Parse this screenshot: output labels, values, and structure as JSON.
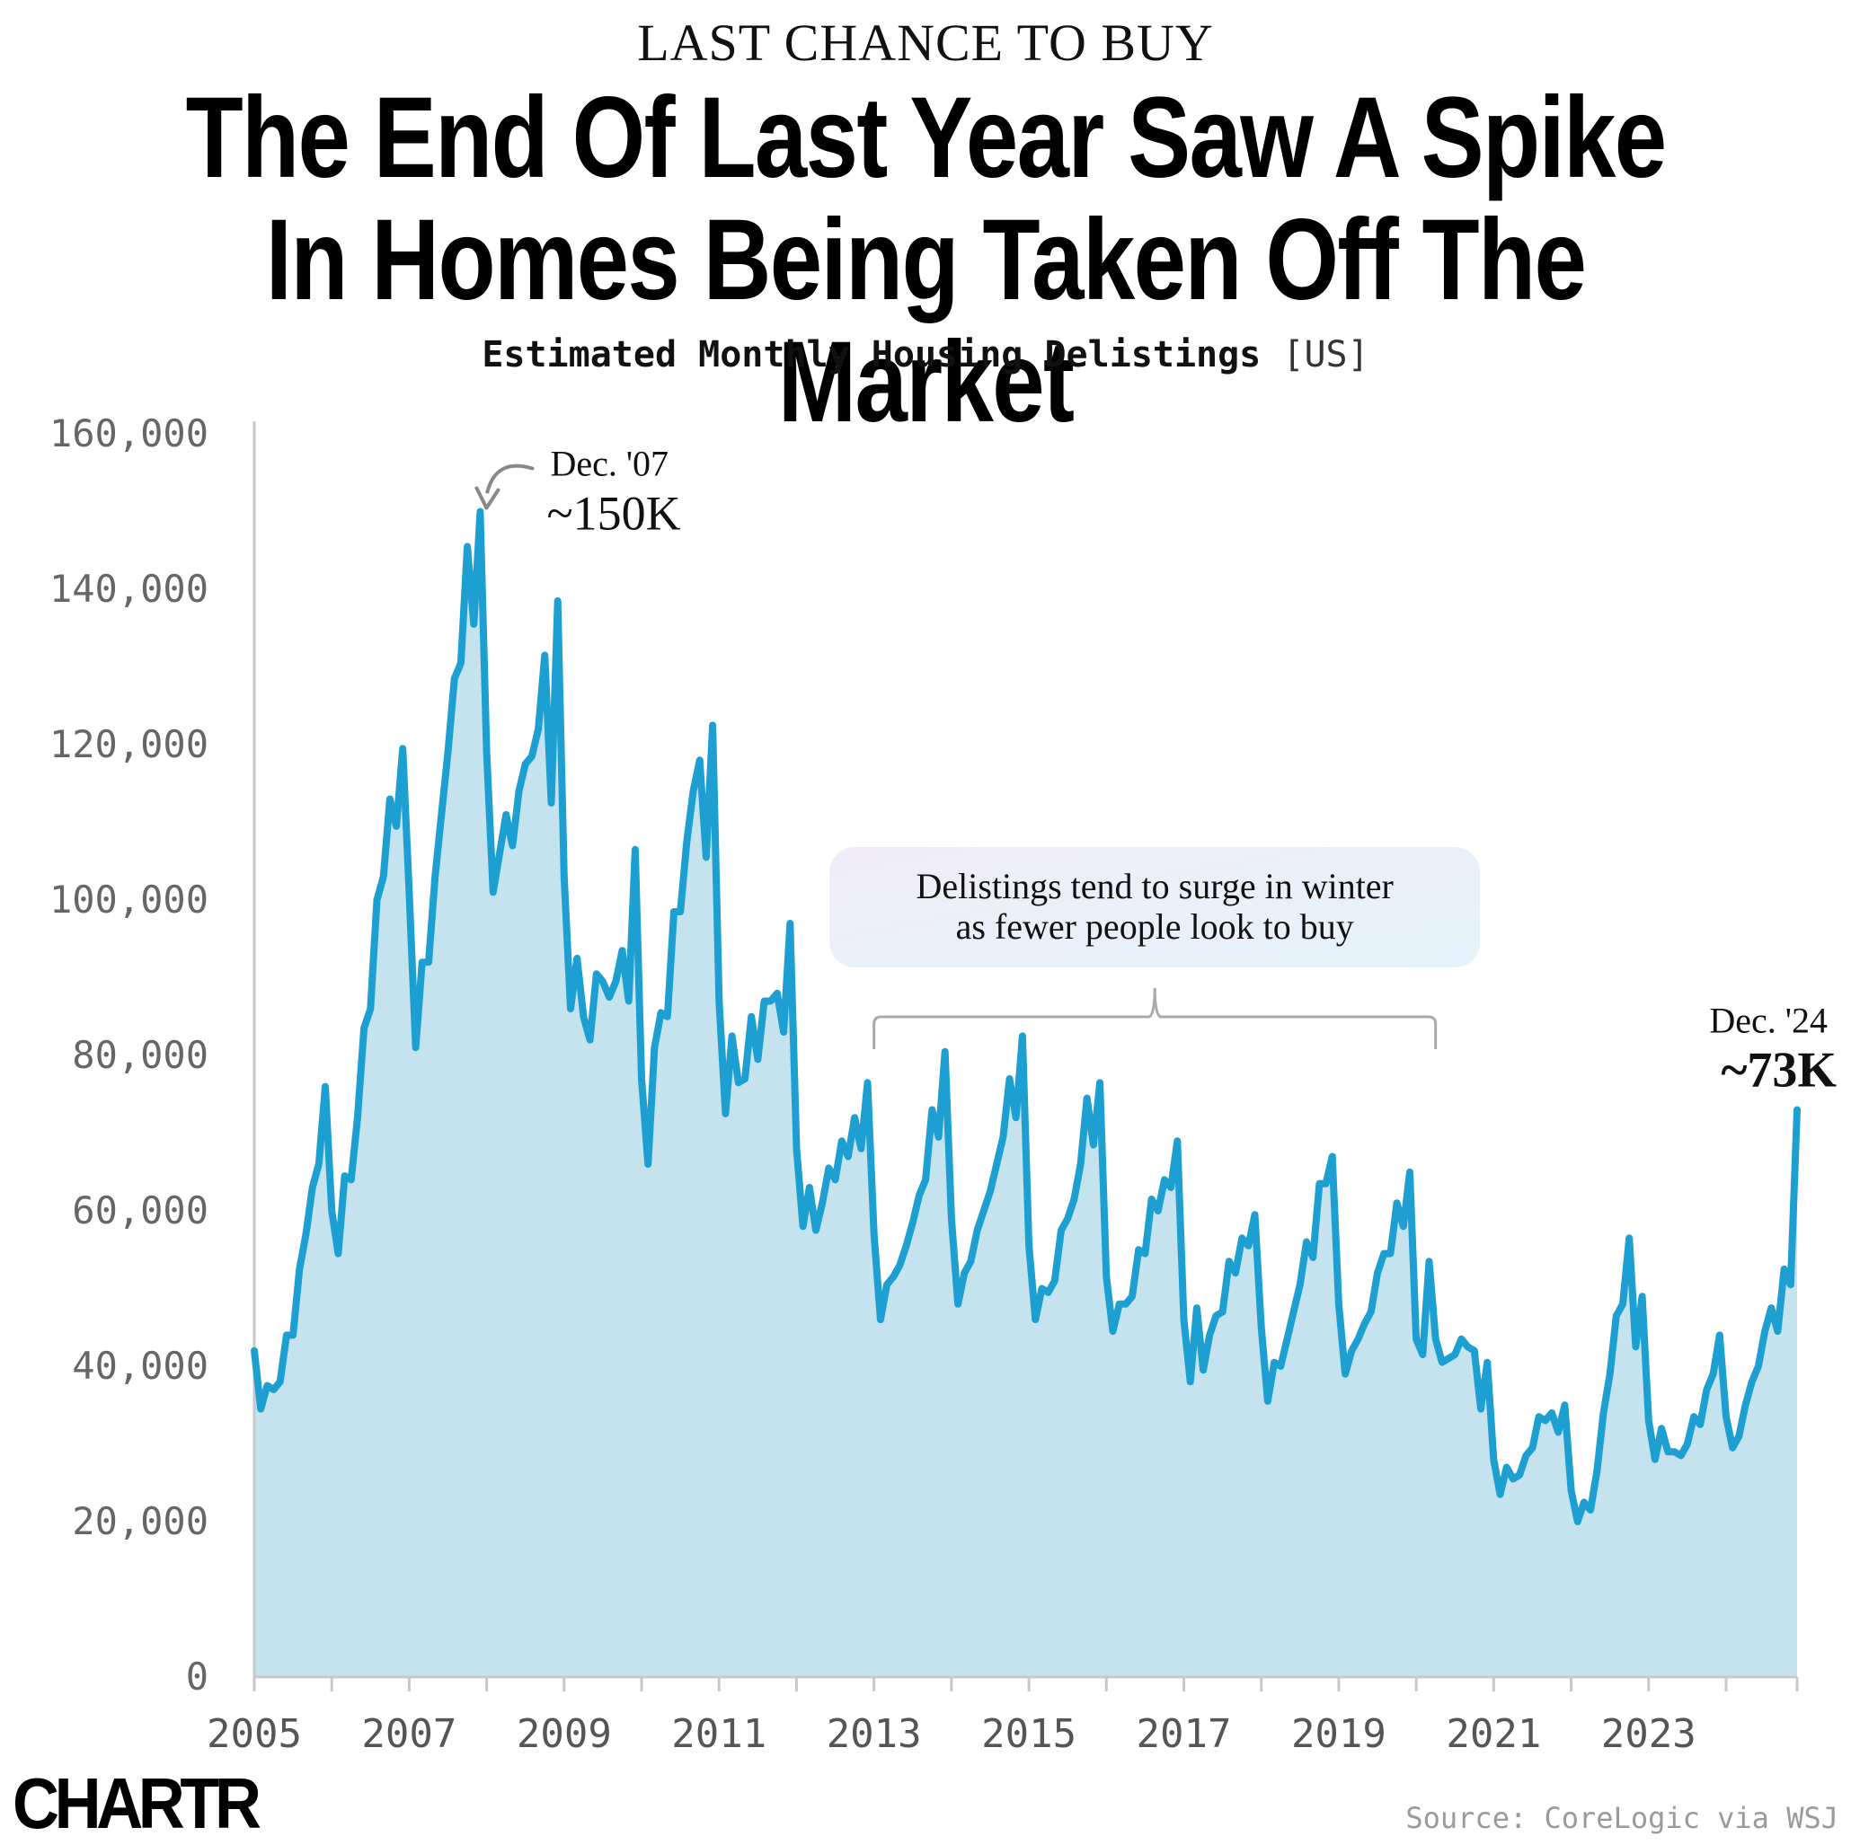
{
  "header": {
    "kicker": "LAST CHANCE TO BUY",
    "title": "The End Of Last Year Saw A Spike In Homes Being Taken Off The Market",
    "subtitle": "Estimated Monthly Housing Delistings",
    "subtitle_unit": "[US]"
  },
  "footer": {
    "logo": "CHARTR",
    "source": "Source: CoreLogic via WSJ"
  },
  "chart_data": {
    "type": "area",
    "title": "The End Of Last Year Saw A Spike In Homes Being Taken Off The Market",
    "subtitle": "Estimated Monthly Housing Delistings [US]",
    "xlabel": "",
    "ylabel": "",
    "x_range": [
      "2005-01",
      "2024-12"
    ],
    "ylim": [
      0,
      160000
    ],
    "y_ticks": [
      0,
      20000,
      40000,
      60000,
      80000,
      100000,
      120000,
      140000,
      160000
    ],
    "y_tick_labels": [
      "0",
      "20,000",
      "40,000",
      "60,000",
      "80,000",
      "100,000",
      "120,000",
      "140,000",
      "160,000"
    ],
    "x_tick_labels": [
      "2005",
      "2007",
      "2009",
      "2011",
      "2013",
      "2015",
      "2017",
      "2019",
      "2021",
      "2023"
    ],
    "grid": false,
    "line_color": "#1e9fd2",
    "fill_color": "#c4e3ef",
    "series": [
      {
        "x": [
          "2005-01",
          "2005-02",
          "2005-03",
          "2005-04",
          "2005-05",
          "2005-06",
          "2005-07",
          "2005-08",
          "2005-09",
          "2005-10",
          "2005-11",
          "2005-12",
          "2006-01",
          "2006-02",
          "2006-03",
          "2006-04",
          "2006-05",
          "2006-06",
          "2006-07",
          "2006-08",
          "2006-09",
          "2006-10",
          "2006-11",
          "2006-12",
          "2007-01",
          "2007-02",
          "2007-03",
          "2007-04",
          "2007-05",
          "2007-06",
          "2007-07",
          "2007-08",
          "2007-09",
          "2007-10",
          "2007-11",
          "2007-12",
          "2008-01",
          "2008-02",
          "2008-03",
          "2008-04",
          "2008-05",
          "2008-06",
          "2008-07",
          "2008-08",
          "2008-09",
          "2008-10",
          "2008-11",
          "2008-12",
          "2009-01",
          "2009-02",
          "2009-03",
          "2009-04",
          "2009-05",
          "2009-06",
          "2009-07",
          "2009-08",
          "2009-09",
          "2009-10",
          "2009-11",
          "2009-12",
          "2010-01",
          "2010-02",
          "2010-03",
          "2010-04",
          "2010-05",
          "2010-06",
          "2010-07",
          "2010-08",
          "2010-09",
          "2010-10",
          "2010-11",
          "2010-12",
          "2011-01",
          "2011-02",
          "2011-03",
          "2011-04",
          "2011-05",
          "2011-06",
          "2011-07",
          "2011-08",
          "2011-09",
          "2011-10",
          "2011-11",
          "2011-12",
          "2012-01",
          "2012-02",
          "2012-03",
          "2012-04",
          "2012-05",
          "2012-06",
          "2012-07",
          "2012-08",
          "2012-09",
          "2012-10",
          "2012-11",
          "2012-12",
          "2013-01",
          "2013-02",
          "2013-03",
          "2013-04",
          "2013-05",
          "2013-06",
          "2013-07",
          "2013-08",
          "2013-09",
          "2013-10",
          "2013-11",
          "2013-12",
          "2014-01",
          "2014-02",
          "2014-03",
          "2014-04",
          "2014-05",
          "2014-06",
          "2014-07",
          "2014-08",
          "2014-09",
          "2014-10",
          "2014-11",
          "2014-12",
          "2015-01",
          "2015-02",
          "2015-03",
          "2015-04",
          "2015-05",
          "2015-06",
          "2015-07",
          "2015-08",
          "2015-09",
          "2015-10",
          "2015-11",
          "2015-12",
          "2016-01",
          "2016-02",
          "2016-03",
          "2016-04",
          "2016-05",
          "2016-06",
          "2016-07",
          "2016-08",
          "2016-09",
          "2016-10",
          "2016-11",
          "2016-12",
          "2017-01",
          "2017-02",
          "2017-03",
          "2017-04",
          "2017-05",
          "2017-06",
          "2017-07",
          "2017-08",
          "2017-09",
          "2017-10",
          "2017-11",
          "2017-12",
          "2018-01",
          "2018-02",
          "2018-03",
          "2018-04",
          "2018-05",
          "2018-06",
          "2018-07",
          "2018-08",
          "2018-09",
          "2018-10",
          "2018-11",
          "2018-12",
          "2019-01",
          "2019-02",
          "2019-03",
          "2019-04",
          "2019-05",
          "2019-06",
          "2019-07",
          "2019-08",
          "2019-09",
          "2019-10",
          "2019-11",
          "2019-12",
          "2020-01",
          "2020-02",
          "2020-03",
          "2020-04",
          "2020-05",
          "2020-06",
          "2020-07",
          "2020-08",
          "2020-09",
          "2020-10",
          "2020-11",
          "2020-12",
          "2021-01",
          "2021-02",
          "2021-03",
          "2021-04",
          "2021-05",
          "2021-06",
          "2021-07",
          "2021-08",
          "2021-09",
          "2021-10",
          "2021-11",
          "2021-12",
          "2022-01",
          "2022-02",
          "2022-03",
          "2022-04",
          "2022-05",
          "2022-06",
          "2022-07",
          "2022-08",
          "2022-09",
          "2022-10",
          "2022-11",
          "2022-12",
          "2023-01",
          "2023-02",
          "2023-03",
          "2023-04",
          "2023-05",
          "2023-06",
          "2023-07",
          "2023-08",
          "2023-09",
          "2023-10",
          "2023-11",
          "2023-12",
          "2024-01",
          "2024-02",
          "2024-03",
          "2024-04",
          "2024-05",
          "2024-06",
          "2024-07",
          "2024-08",
          "2024-09",
          "2024-10",
          "2024-11",
          "2024-12"
        ],
        "values": [
          42000,
          34500,
          37500,
          37000,
          38000,
          44000,
          44000,
          52500,
          57000,
          63000,
          66000,
          76000,
          60000,
          54500,
          64500,
          64000,
          72000,
          83500,
          86000,
          100000,
          103000,
          113000,
          109500,
          119500,
          101000,
          81000,
          92000,
          92000,
          103000,
          111000,
          119000,
          128500,
          130500,
          145500,
          135500,
          150000,
          119000,
          101000,
          106000,
          111000,
          107000,
          114000,
          117500,
          118500,
          122000,
          131500,
          112500,
          138500,
          103000,
          86000,
          92500,
          85000,
          82000,
          90500,
          89500,
          87500,
          89500,
          93500,
          87000,
          106500,
          77000,
          66000,
          81000,
          85500,
          85000,
          98500,
          98500,
          107500,
          114000,
          118000,
          105500,
          122500,
          87000,
          72500,
          82500,
          76500,
          77000,
          85000,
          79500,
          87000,
          87000,
          88000,
          83000,
          97000,
          68000,
          58000,
          63000,
          57500,
          61000,
          65500,
          64000,
          69000,
          67000,
          72000,
          68000,
          76500,
          57000,
          46000,
          50500,
          51500,
          53000,
          55500,
          58500,
          62000,
          64000,
          73000,
          69500,
          80500,
          59000,
          48000,
          52000,
          53500,
          57500,
          60000,
          62500,
          66000,
          69500,
          77000,
          72000,
          82500,
          55500,
          46000,
          50000,
          49500,
          51000,
          57500,
          59000,
          61500,
          66000,
          74500,
          68500,
          76500,
          51500,
          44500,
          48000,
          48000,
          49000,
          55000,
          54500,
          61500,
          60000,
          64000,
          63000,
          69000,
          46000,
          38000,
          47500,
          39500,
          44000,
          46500,
          47000,
          53500,
          52000,
          56500,
          55500,
          59500,
          45000,
          35500,
          40500,
          40000,
          43500,
          47000,
          50500,
          56000,
          54000,
          63500,
          63500,
          67000,
          48000,
          39000,
          42000,
          43500,
          45500,
          47000,
          52000,
          54500,
          54500,
          61000,
          58000,
          65000,
          43500,
          41500,
          53500,
          43500,
          40500,
          41000,
          41500,
          43500,
          42500,
          42000,
          34500,
          40500,
          28000,
          23500,
          27000,
          25500,
          26000,
          28500,
          29500,
          33500,
          33000,
          34000,
          31500,
          35000,
          24000,
          20000,
          22500,
          21500,
          26500,
          34000,
          39000,
          46500,
          48000,
          56500,
          42500,
          49000,
          33000,
          28000,
          32000,
          29000,
          29000,
          28500,
          30000,
          33500,
          32500,
          37000,
          39000,
          44000,
          33500,
          29500,
          31000,
          35000,
          38000,
          40000,
          44500,
          47500,
          44500,
          52500,
          50500,
          73000
        ]
      }
    ],
    "annotations": [
      {
        "label": "Dec. '07",
        "value_label": "~150K",
        "x": "2007-12",
        "y": 150000
      },
      {
        "label": "Dec. '24",
        "value_label": "~73K",
        "x": "2024-12",
        "y": 73000
      },
      {
        "text": "Delistings tend to surge in winter as fewer people look to buy",
        "x_from": "2013-01",
        "x_to": "2020-04"
      }
    ]
  }
}
